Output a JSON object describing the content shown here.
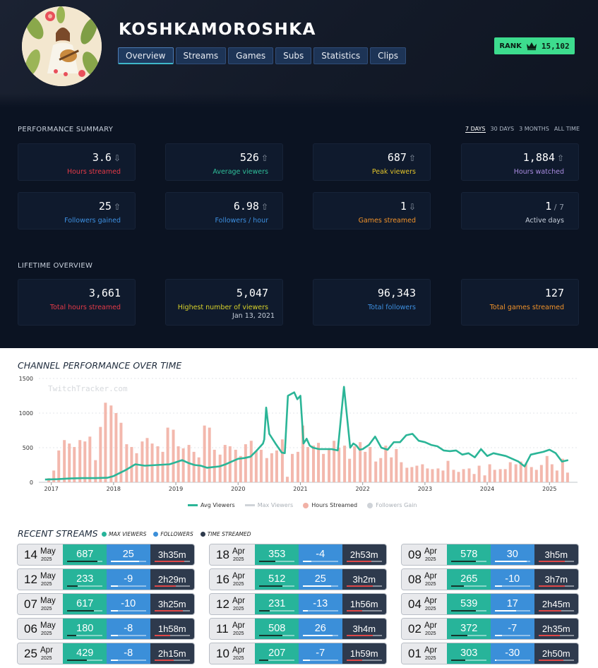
{
  "channel": {
    "name": "KOSHKAMOROSHKA"
  },
  "tabs": [
    "Overview",
    "Streams",
    "Games",
    "Subs",
    "Statistics",
    "Clips"
  ],
  "rank": {
    "label": "RANK",
    "value": "15,102"
  },
  "performance": {
    "title": "PERFORMANCE SUMMARY",
    "periods": [
      "7 DAYS",
      "30 DAYS",
      "3 MONTHS",
      "ALL TIME"
    ],
    "active_period": "7 DAYS",
    "cards": [
      {
        "value": "3.6",
        "trend": "down",
        "label": "Hours streamed",
        "color": "#e53a48"
      },
      {
        "value": "526",
        "trend": "up",
        "label": "Average viewers",
        "color": "#2fbf9a"
      },
      {
        "value": "687",
        "trend": "up",
        "label": "Peak viewers",
        "color": "#e0c22a"
      },
      {
        "value": "1,884",
        "trend": "up",
        "label": "Hours watched",
        "color": "#a98be0"
      },
      {
        "value": "25",
        "trend": "up",
        "label": "Followers gained",
        "color": "#3d8fe0"
      },
      {
        "value": "6.98",
        "trend": "up",
        "label": "Followers / hour",
        "color": "#3d8fe0"
      },
      {
        "value": "1",
        "trend": "down",
        "label": "Games streamed",
        "color": "#f0922a"
      },
      {
        "value": "1",
        "suffix": "/ 7",
        "label": "Active days",
        "color": "#c8d0dc"
      }
    ]
  },
  "lifetime": {
    "title": "LIFETIME OVERVIEW",
    "cards": [
      {
        "value": "3,661",
        "label": "Total hours streamed",
        "color": "#e53a48"
      },
      {
        "value": "5,047",
        "label": "Highest number of viewers",
        "date": "Jan 13, 2021",
        "color": "#d8d22a"
      },
      {
        "value": "96,343",
        "label": "Total followers",
        "color": "#3d8fe0"
      },
      {
        "value": "127",
        "label": "Total games streamed",
        "color": "#f0922a"
      }
    ]
  },
  "chart_data": {
    "type": "bar",
    "title": "CHANNEL PERFORMANCE OVER TIME",
    "watermark": "TwitchTracker.com",
    "ylim": [
      0,
      1500
    ],
    "yticks": [
      "0",
      "500",
      "1000",
      "1500"
    ],
    "xticks": [
      "2017",
      "2018",
      "2019",
      "2020",
      "2021",
      "2022",
      "2023",
      "2024",
      "2025"
    ],
    "legend": [
      "Avg Viewers",
      "Max Viewers",
      "Hours Streamed",
      "Followers Gain"
    ],
    "legend_colors": [
      "#2bb597",
      "#cfd3d8",
      "#f1b1a6",
      "#cfd3d8"
    ],
    "series": [
      {
        "name": "Hours Streamed",
        "type": "bar",
        "color": "#f3b8ad",
        "x": [
          2016.96,
          2017.04,
          2017.12,
          2017.21,
          2017.29,
          2017.37,
          2017.46,
          2017.54,
          2017.62,
          2017.71,
          2017.79,
          2017.87,
          2017.96,
          2018.04,
          2018.12,
          2018.21,
          2018.29,
          2018.37,
          2018.46,
          2018.54,
          2018.62,
          2018.71,
          2018.79,
          2018.87,
          2018.96,
          2019.04,
          2019.12,
          2019.21,
          2019.29,
          2019.37,
          2019.46,
          2019.54,
          2019.62,
          2019.71,
          2019.79,
          2019.87,
          2019.96,
          2020.04,
          2020.12,
          2020.21,
          2020.29,
          2020.37,
          2020.46,
          2020.54,
          2020.62,
          2020.71,
          2020.79,
          2020.87,
          2020.96,
          2021.04,
          2021.12,
          2021.21,
          2021.29,
          2021.37,
          2021.46,
          2021.54,
          2021.62,
          2021.71,
          2021.79,
          2021.87,
          2021.96,
          2022.04,
          2022.12,
          2022.21,
          2022.29,
          2022.37,
          2022.46,
          2022.54,
          2022.62,
          2022.71,
          2022.79,
          2022.87,
          2022.96,
          2023.04,
          2023.12,
          2023.21,
          2023.29,
          2023.37,
          2023.46,
          2023.54,
          2023.62,
          2023.71,
          2023.79,
          2023.87,
          2023.96,
          2024.04,
          2024.12,
          2024.21,
          2024.29,
          2024.37,
          2024.46,
          2024.54,
          2024.62,
          2024.71,
          2024.79,
          2024.87,
          2024.96,
          2025.04,
          2025.12,
          2025.21,
          2025.29
        ],
        "values": [
          60,
          170,
          460,
          610,
          560,
          510,
          610,
          590,
          660,
          320,
          800,
          1150,
          1110,
          1000,
          860,
          550,
          510,
          420,
          590,
          640,
          560,
          520,
          440,
          790,
          760,
          520,
          490,
          540,
          440,
          360,
          820,
          790,
          470,
          400,
          540,
          520,
          470,
          380,
          550,
          600,
          450,
          470,
          350,
          420,
          460,
          620,
          80,
          410,
          440,
          820,
          510,
          530,
          570,
          410,
          470,
          600,
          500,
          530,
          340,
          520,
          580,
          440,
          510,
          300,
          350,
          530,
          360,
          480,
          290,
          210,
          220,
          240,
          260,
          200,
          190,
          200,
          170,
          310,
          180,
          150,
          190,
          200,
          120,
          240,
          100,
          260,
          180,
          190,
          190,
          290,
          260,
          300,
          270,
          220,
          180,
          250,
          380,
          260,
          170,
          340,
          140
        ]
      },
      {
        "name": "Avg Viewers",
        "type": "line",
        "color": "#2bb597",
        "x": [
          2016.9,
          2017.1,
          2017.3,
          2017.5,
          2017.7,
          2017.9,
          2018.0,
          2018.2,
          2018.35,
          2018.5,
          2018.7,
          2018.9,
          2019.0,
          2019.1,
          2019.2,
          2019.3,
          2019.4,
          2019.5,
          2019.6,
          2019.7,
          2019.8,
          2019.9,
          2020.0,
          2020.1,
          2020.2,
          2020.3,
          2020.4,
          2020.42,
          2020.45,
          2020.5,
          2020.6,
          2020.7,
          2020.75,
          2020.8,
          2020.9,
          2020.95,
          2021.0,
          2021.05,
          2021.1,
          2021.15,
          2021.2,
          2021.3,
          2021.4,
          2021.5,
          2021.6,
          2021.7,
          2021.8,
          2021.85,
          2021.9,
          2021.95,
          2022.0,
          2022.1,
          2022.2,
          2022.3,
          2022.4,
          2022.5,
          2022.6,
          2022.7,
          2022.8,
          2022.9,
          2023.0,
          2023.1,
          2023.2,
          2023.3,
          2023.4,
          2023.5,
          2023.6,
          2023.7,
          2023.8,
          2023.9,
          2024.0,
          2024.1,
          2024.2,
          2024.3,
          2024.4,
          2024.5,
          2024.6,
          2024.7,
          2024.8,
          2024.9,
          2025.0,
          2025.1,
          2025.2,
          2025.3
        ],
        "values": [
          40,
          45,
          55,
          60,
          60,
          65,
          90,
          180,
          260,
          240,
          250,
          260,
          290,
          320,
          280,
          250,
          240,
          210,
          220,
          230,
          260,
          300,
          340,
          350,
          370,
          460,
          560,
          620,
          1080,
          700,
          560,
          430,
          420,
          1250,
          1300,
          1200,
          1250,
          560,
          630,
          530,
          500,
          480,
          480,
          480,
          460,
          1380,
          500,
          560,
          530,
          470,
          480,
          540,
          660,
          500,
          470,
          580,
          580,
          680,
          700,
          600,
          580,
          540,
          520,
          460,
          450,
          460,
          400,
          420,
          360,
          480,
          380,
          420,
          400,
          380,
          340,
          300,
          230,
          400,
          420,
          440,
          470,
          420,
          300,
          320
        ]
      }
    ]
  },
  "recent": {
    "title": "RECENT STREAMS",
    "legend": [
      {
        "label": "MAX VIEWERS",
        "color": "#27b49a"
      },
      {
        "label": "FOLLOWERS",
        "color": "#3b8fd9"
      },
      {
        "label": "TIME STREAMED",
        "color": "#2e3a4d"
      }
    ],
    "streams": [
      {
        "day": "14",
        "month": "May",
        "year": "2025",
        "max": "687",
        "fol": "25",
        "time": "3h35m",
        "maxbar": 0.85,
        "folbar": 0.8,
        "timebar": 0.85
      },
      {
        "day": "12",
        "month": "May",
        "year": "2025",
        "max": "233",
        "fol": "-9",
        "time": "2h29m",
        "maxbar": 0.3,
        "folbar": 0.2,
        "timebar": 0.6
      },
      {
        "day": "07",
        "month": "May",
        "year": "2025",
        "max": "617",
        "fol": "-10",
        "time": "3h25m",
        "maxbar": 0.75,
        "folbar": 0.2,
        "timebar": 0.8
      },
      {
        "day": "06",
        "month": "May",
        "year": "2025",
        "max": "180",
        "fol": "-8",
        "time": "1h58m",
        "maxbar": 0.25,
        "folbar": 0.2,
        "timebar": 0.45
      },
      {
        "day": "25",
        "month": "Apr",
        "year": "2025",
        "max": "429",
        "fol": "-8",
        "time": "2h15m",
        "maxbar": 0.55,
        "folbar": 0.2,
        "timebar": 0.55
      },
      {
        "day": "18",
        "month": "Apr",
        "year": "2025",
        "max": "353",
        "fol": "-4",
        "time": "2h53m",
        "maxbar": 0.45,
        "folbar": 0.25,
        "timebar": 0.7
      },
      {
        "day": "16",
        "month": "Apr",
        "year": "2025",
        "max": "512",
        "fol": "25",
        "time": "3h2m",
        "maxbar": 0.65,
        "folbar": 0.8,
        "timebar": 0.75
      },
      {
        "day": "12",
        "month": "Apr",
        "year": "2025",
        "max": "231",
        "fol": "-13",
        "time": "1h56m",
        "maxbar": 0.3,
        "folbar": 0.15,
        "timebar": 0.45
      },
      {
        "day": "11",
        "month": "Apr",
        "year": "2025",
        "max": "508",
        "fol": "26",
        "time": "3h4m",
        "maxbar": 0.65,
        "folbar": 0.85,
        "timebar": 0.75
      },
      {
        "day": "10",
        "month": "Apr",
        "year": "2025",
        "max": "207",
        "fol": "-7",
        "time": "1h59m",
        "maxbar": 0.25,
        "folbar": 0.2,
        "timebar": 0.45
      },
      {
        "day": "09",
        "month": "Apr",
        "year": "2025",
        "max": "578",
        "fol": "30",
        "time": "3h5m",
        "maxbar": 0.7,
        "folbar": 0.9,
        "timebar": 0.75
      },
      {
        "day": "08",
        "month": "Apr",
        "year": "2025",
        "max": "265",
        "fol": "-10",
        "time": "3h7m",
        "maxbar": 0.35,
        "folbar": 0.2,
        "timebar": 0.75
      },
      {
        "day": "04",
        "month": "Apr",
        "year": "2025",
        "max": "539",
        "fol": "17",
        "time": "2h45m",
        "maxbar": 0.7,
        "folbar": 0.6,
        "timebar": 0.65
      },
      {
        "day": "02",
        "month": "Apr",
        "year": "2025",
        "max": "372",
        "fol": "-7",
        "time": "2h35m",
        "maxbar": 0.45,
        "folbar": 0.2,
        "timebar": 0.6
      },
      {
        "day": "01",
        "month": "Apr",
        "year": "2025",
        "max": "303",
        "fol": "-30",
        "time": "2h50m",
        "maxbar": 0.4,
        "folbar": 0.05,
        "timebar": 0.7
      }
    ]
  }
}
